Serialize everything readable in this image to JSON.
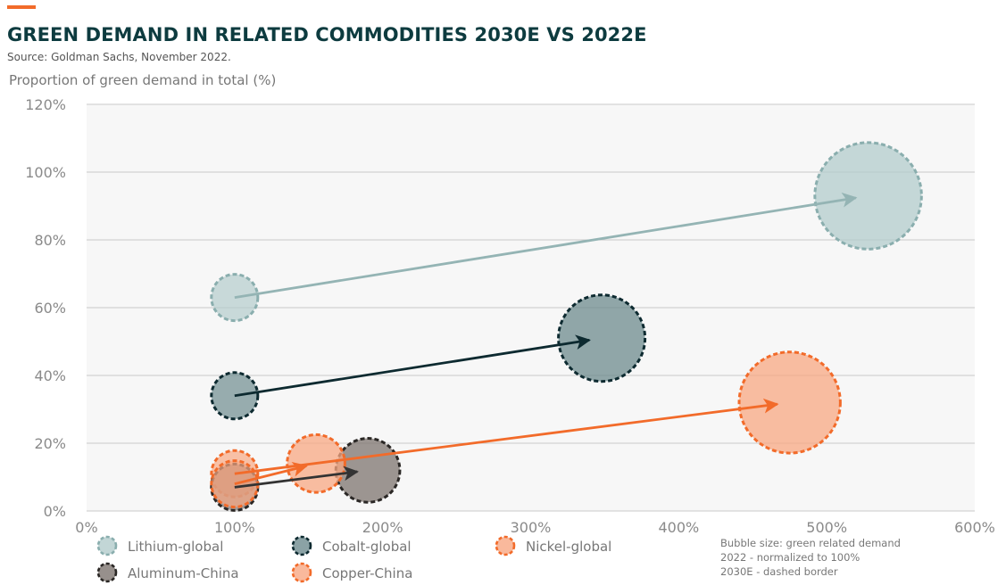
{
  "chart_data": {
    "type": "scatter",
    "title": "GREEN DEMAND IN RELATED COMMODITIES 2030E VS 2022E",
    "subtitle": "Source: Goldman Sachs, November 2022.",
    "ylabel": "Proportion of green demand in total (%)",
    "xlabel": "",
    "xlim": [
      0,
      600
    ],
    "ylim": [
      0,
      120
    ],
    "x_ticks": [
      "0%",
      "100%",
      "200%",
      "300%",
      "400%",
      "500%",
      "600%"
    ],
    "y_ticks": [
      "0%",
      "20%",
      "40%",
      "60%",
      "80%",
      "100%",
      "120%"
    ],
    "grid": "horizontal",
    "legend_position": "bottom",
    "series": [
      {
        "name": "Lithium-global",
        "color": "#b3cccc",
        "stroke": "#8aaeae",
        "arrow": "#94b4b4",
        "points": [
          {
            "year": "2022",
            "x": 100,
            "y": 63,
            "size": 100
          },
          {
            "year": "2030E",
            "x": 528,
            "y": 93,
            "size": 528
          }
        ]
      },
      {
        "name": "Cobalt-global",
        "color": "#6e8b8e",
        "stroke": "#0d2a30",
        "arrow": "#0d2a30",
        "points": [
          {
            "year": "2022",
            "x": 100,
            "y": 34,
            "size": 100
          },
          {
            "year": "2030E",
            "x": 348,
            "y": 51,
            "size": 348
          }
        ]
      },
      {
        "name": "Nickel-global",
        "color": "#f8a883",
        "stroke": "#f26b2a",
        "arrow": "#f26b2a",
        "points": [
          {
            "year": "2022",
            "x": 100,
            "y": 11,
            "size": 100
          },
          {
            "year": "2030E",
            "x": 475,
            "y": 32,
            "size": 475
          }
        ]
      },
      {
        "name": "Aluminum-China",
        "color": "#7d746f",
        "stroke": "#2a2725",
        "arrow": "#333333",
        "points": [
          {
            "year": "2022",
            "x": 100,
            "y": 7,
            "size": 100
          },
          {
            "year": "2030E",
            "x": 190,
            "y": 12,
            "size": 190
          }
        ]
      },
      {
        "name": "Copper-China",
        "color": "#f8a883",
        "stroke": "#f26b2a",
        "arrow": "#f26b2a",
        "points": [
          {
            "year": "2022",
            "x": 100,
            "y": 8,
            "size": 100
          },
          {
            "year": "2030E",
            "x": 155,
            "y": 14,
            "size": 155
          }
        ]
      }
    ],
    "note": [
      "Bubble size: green related demand",
      "2022 - normalized to 100%",
      "2030E - dashed border"
    ]
  }
}
